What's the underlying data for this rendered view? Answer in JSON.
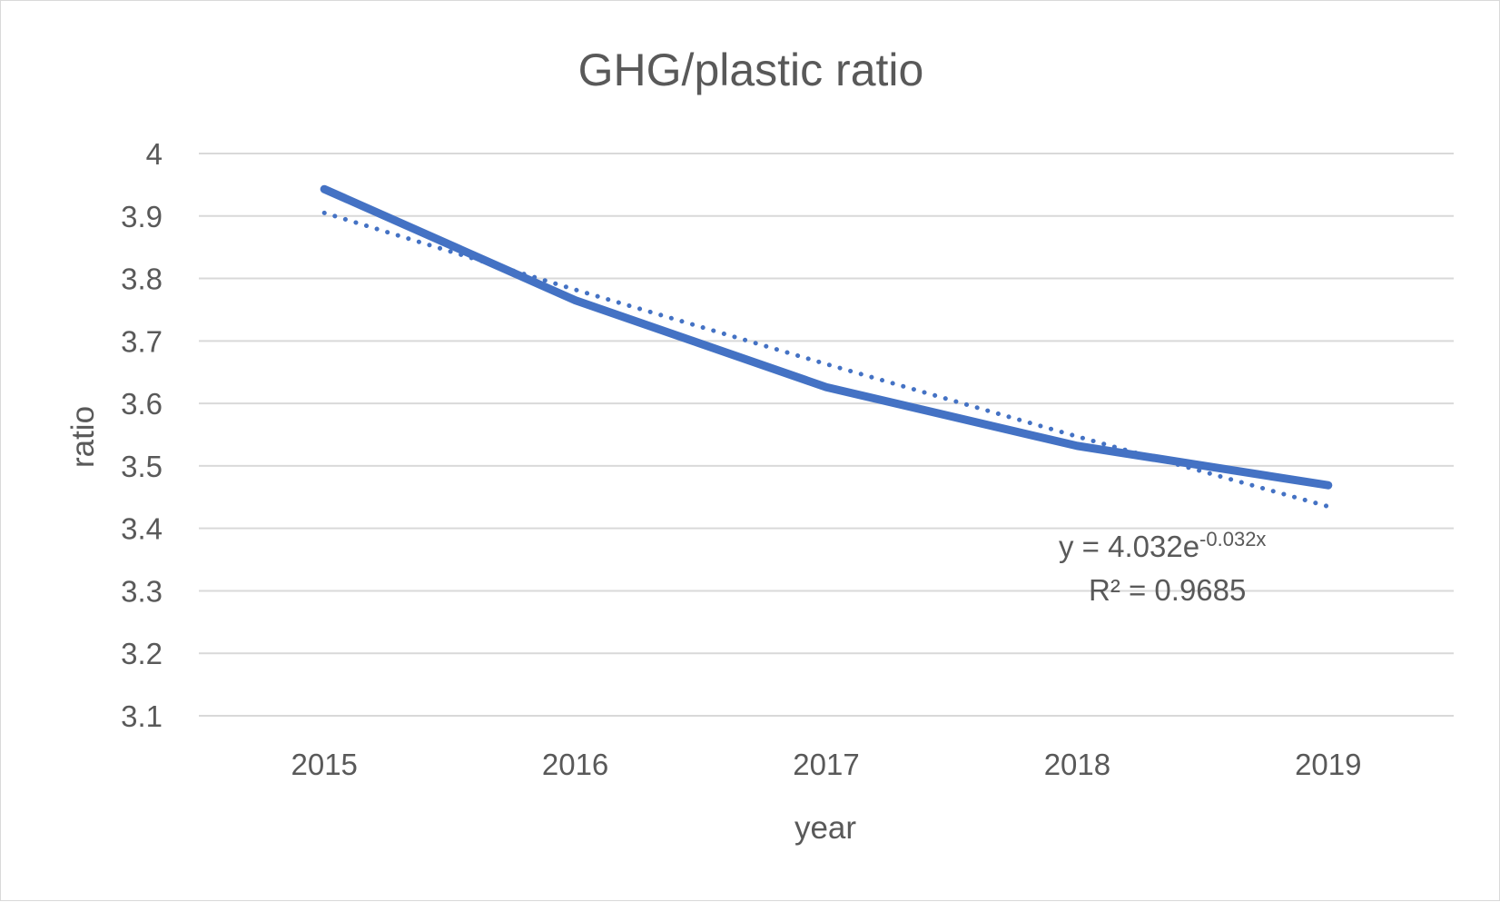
{
  "chart_data": {
    "type": "line",
    "title": "GHG/plastic ratio",
    "xlabel": "year",
    "ylabel": "ratio",
    "categories": [
      "2015",
      "2016",
      "2017",
      "2018",
      "2019"
    ],
    "series": [
      {
        "values": [
          3.943,
          3.765,
          3.626,
          3.532,
          3.469
        ],
        "color": "#4472c4",
        "line_style": "solid"
      }
    ],
    "trendline": {
      "type": "exponential",
      "values": [
        3.905,
        3.782,
        3.663,
        3.547,
        3.435
      ],
      "color": "#4472c4",
      "line_style": "dotted",
      "equation_base": "y = 4.032e",
      "equation_exponent": "-0.032x",
      "r_squared": "R² = 0.9685"
    },
    "ylim": [
      3.1,
      4.0
    ],
    "yticks": [
      "3.1",
      "3.2",
      "3.3",
      "3.4",
      "3.5",
      "3.6",
      "3.7",
      "3.8",
      "3.9",
      "4"
    ],
    "grid": true,
    "legend": "none"
  }
}
